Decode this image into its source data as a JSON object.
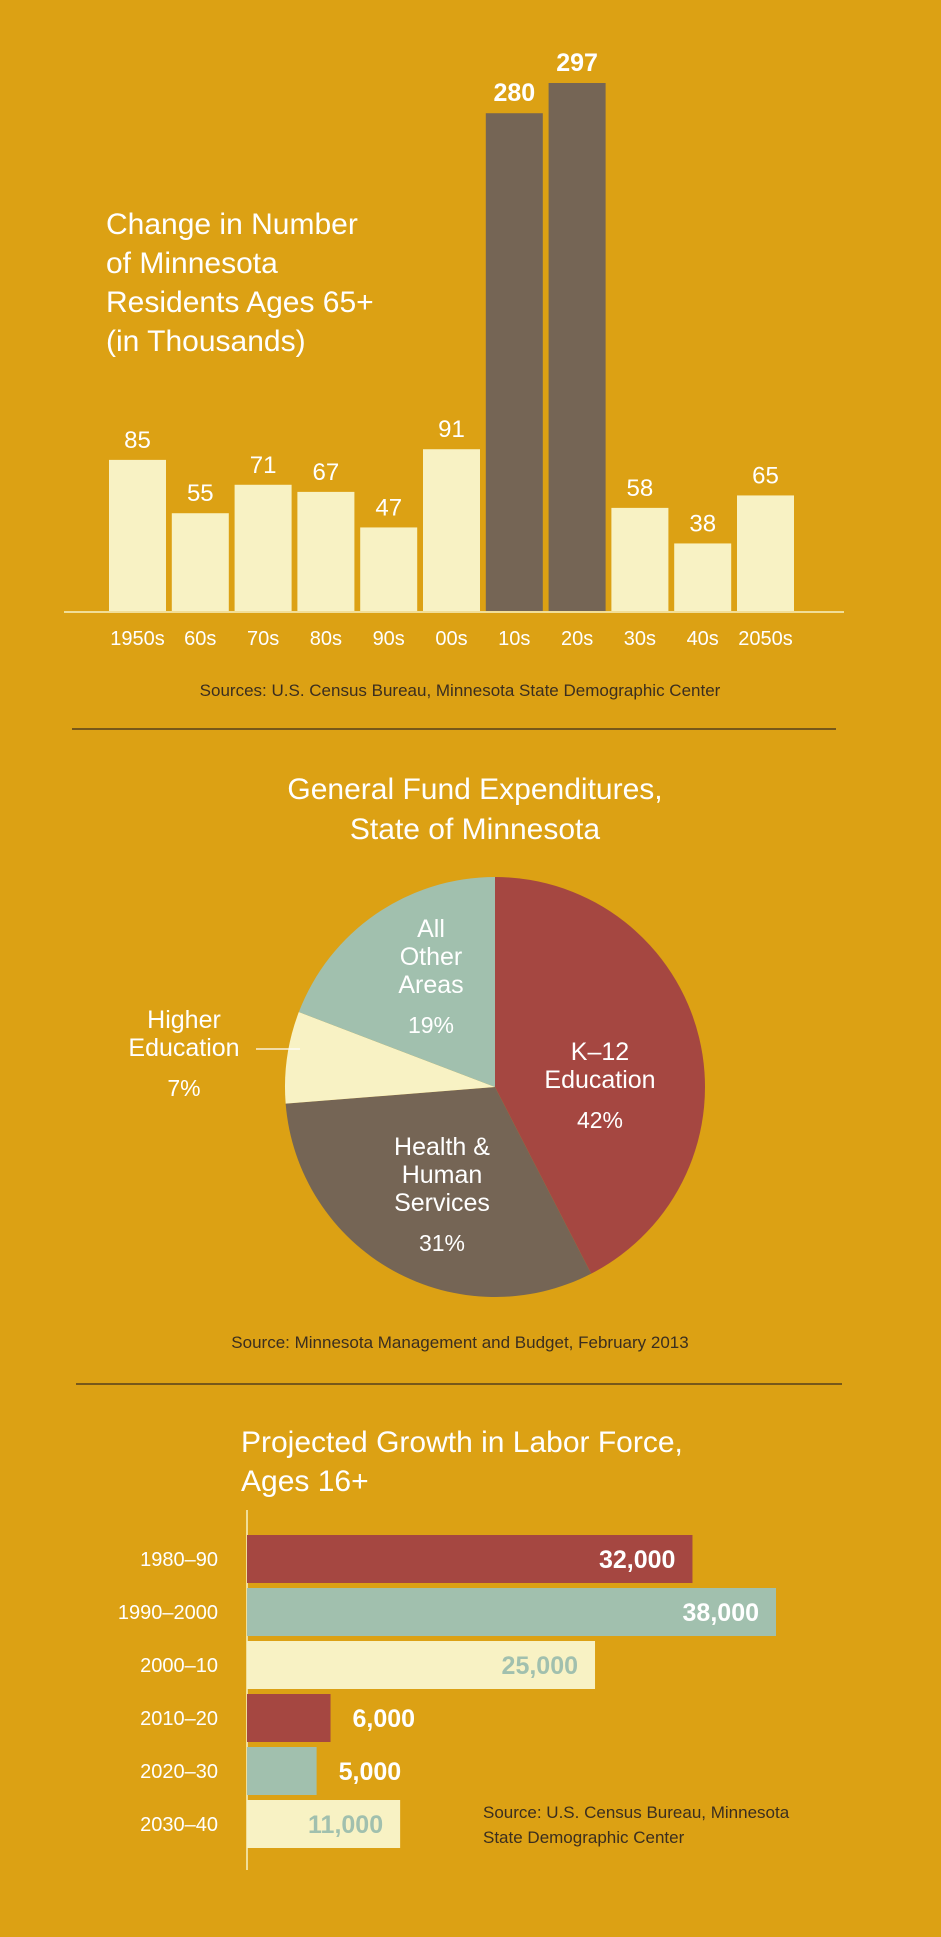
{
  "colors": {
    "background": "#DCA114",
    "cream": "#F8F2C4",
    "brown": "#756555",
    "red": "#A54741",
    "teal": "#A1C0AE",
    "text_white": "#FFFFFF",
    "text_dark": "#3B2E1F"
  },
  "chart_data": [
    {
      "type": "bar",
      "title_lines": [
        "Change in Number",
        "of Minnesota",
        "Residents Ages 65+",
        "(in Thousands)"
      ],
      "categories": [
        "1950s",
        "60s",
        "70s",
        "80s",
        "90s",
        "00s",
        "10s",
        "20s",
        "30s",
        "40s",
        "2050s"
      ],
      "values": [
        85,
        55,
        71,
        67,
        47,
        91,
        280,
        297,
        58,
        38,
        65
      ],
      "bar_colors": [
        "#F8F2C4",
        "#F8F2C4",
        "#F8F2C4",
        "#F8F2C4",
        "#F8F2C4",
        "#F8F2C4",
        "#756555",
        "#756555",
        "#F8F2C4",
        "#F8F2C4",
        "#F8F2C4"
      ],
      "ylim": [
        0,
        297
      ],
      "source": "Sources: U.S. Census Bureau, Minnesota State Demographic Center"
    },
    {
      "type": "pie",
      "title_lines": [
        "General Fund Expenditures,",
        "State of Minnesota"
      ],
      "slices": [
        {
          "label_lines": [
            "K–12",
            "Education"
          ],
          "pct_label": "42%",
          "value": 42,
          "color": "#A54741"
        },
        {
          "label_lines": [
            "Health &",
            "Human",
            "Services"
          ],
          "pct_label": "31%",
          "value": 31,
          "color": "#756555"
        },
        {
          "label_lines": [
            "Higher",
            "Education"
          ],
          "pct_label": "7%",
          "value": 7,
          "color": "#F8F2C4"
        },
        {
          "label_lines": [
            "All",
            "Other",
            "Areas"
          ],
          "pct_label": "19%",
          "value": 19,
          "color": "#A1C0AE"
        }
      ],
      "source": "Source: Minnesota Management and Budget, February 2013"
    },
    {
      "type": "bar",
      "orientation": "horizontal",
      "title_lines": [
        "Projected Growth in Labor Force,",
        "Ages 16+"
      ],
      "categories": [
        "1980–90",
        "1990–2000",
        "2000–10",
        "2010–20",
        "2020–30",
        "2030–40"
      ],
      "values": [
        32000,
        38000,
        25000,
        6000,
        5000,
        11000
      ],
      "value_labels": [
        "32,000",
        "38,000",
        "25,000",
        "6,000",
        "5,000",
        "11,000"
      ],
      "bar_colors": [
        "#A54741",
        "#A1C0AE",
        "#F8F2C4",
        "#A54741",
        "#A1C0AE",
        "#F8F2C4"
      ],
      "label_colors": [
        "#FFFFFF",
        "#FFFFFF",
        "#A1C0AE",
        "#FFFFFF",
        "#FFFFFF",
        "#A1C0AE"
      ],
      "xlim": [
        0,
        38000
      ],
      "source_lines": [
        "Source: U.S. Census Bureau, Minnesota",
        "State Demographic Center"
      ]
    }
  ]
}
